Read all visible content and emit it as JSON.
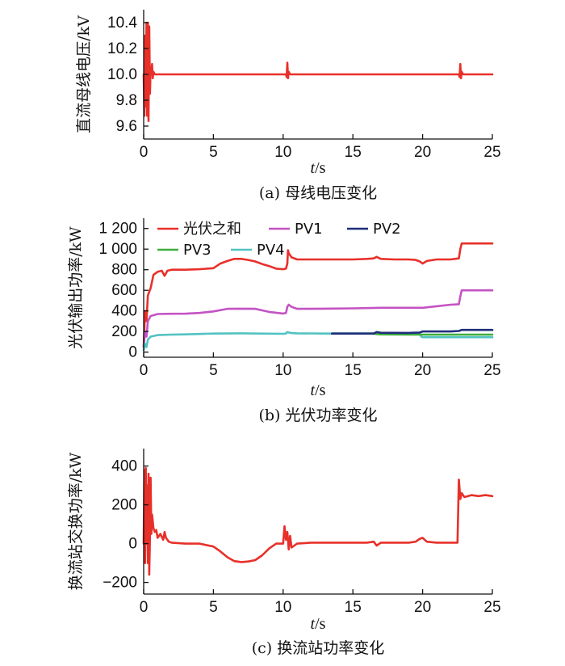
{
  "chart_data": [
    {
      "type": "line",
      "caption": "(a)  母线电压变化",
      "ylabel": "直流母线电压/kV",
      "xlabel_italic": "t",
      "xlabel_unit": "/s",
      "xlim": [
        0,
        25
      ],
      "ylim": [
        9.5,
        10.5
      ],
      "xticks": [
        "0",
        "5",
        "10",
        "15",
        "20",
        "25"
      ],
      "yticks": [
        {
          "v": 9.6,
          "label": "9.6"
        },
        {
          "v": 9.8,
          "label": "9.8"
        },
        {
          "v": 10.0,
          "label": "10.0"
        },
        {
          "v": 10.2,
          "label": "10.2"
        },
        {
          "v": 10.4,
          "label": "10.4"
        }
      ],
      "series": [
        {
          "color": "#e8302a",
          "x": [
            0,
            0.05,
            0.1,
            0.15,
            0.2,
            0.25,
            0.3,
            0.35,
            0.4,
            0.45,
            0.5,
            0.55,
            0.6,
            0.65,
            0.7,
            0.8,
            1.0,
            1.5,
            3,
            5,
            8,
            10,
            10.2,
            10.25,
            10.3,
            10.35,
            10.4,
            10.5,
            10.7,
            12,
            15,
            18,
            20,
            22,
            22.6,
            22.65,
            22.7,
            22.75,
            22.8,
            22.9,
            23.2,
            25
          ],
          "y": [
            10.0,
            9.68,
            10.3,
            9.75,
            10.4,
            9.68,
            10.4,
            9.64,
            10.37,
            9.85,
            10.06,
            10.0,
            10.08,
            9.97,
            10.02,
            10.0,
            10.0,
            10.0,
            10.0,
            10.0,
            10.0,
            10.0,
            10.0,
            9.98,
            10.09,
            9.97,
            10.02,
            10.0,
            10.0,
            10.0,
            10.0,
            10.0,
            10.0,
            10.0,
            10.0,
            9.98,
            10.08,
            9.97,
            10.02,
            10.0,
            10.0,
            10.0
          ]
        }
      ]
    },
    {
      "type": "line",
      "caption": "(b)  光伏功率变化",
      "ylabel": "光伏输出功率/kW",
      "xlabel_italic": "t",
      "xlabel_unit": "/s",
      "xlim": [
        0,
        25
      ],
      "ylim": [
        -50,
        1300
      ],
      "xticks": [
        "0",
        "5",
        "10",
        "15",
        "20",
        "25"
      ],
      "yticks": [
        {
          "v": 0,
          "label": "0"
        },
        {
          "v": 200,
          "label": "200"
        },
        {
          "v": 400,
          "label": "400"
        },
        {
          "v": 600,
          "label": "600"
        },
        {
          "v": 800,
          "label": "800"
        },
        {
          "v": 1000,
          "label": "1 000"
        },
        {
          "v": 1200,
          "label": "1 200"
        }
      ],
      "legend": [
        "光伏之和",
        "PV1",
        "PV2",
        "PV3",
        "PV4"
      ],
      "series": [
        {
          "name": "光伏之和",
          "color": "#e8302a",
          "x": [
            0,
            0.1,
            0.2,
            0.3,
            0.5,
            0.7,
            1.0,
            1.3,
            1.5,
            1.7,
            2.0,
            3,
            4,
            5,
            5.5,
            6,
            6.5,
            7,
            7.5,
            8,
            8.5,
            9,
            9.5,
            10,
            10.2,
            10.3,
            10.35,
            10.4,
            10.6,
            11,
            12,
            13,
            14,
            15,
            16,
            16.5,
            16.7,
            17,
            18,
            19,
            19.5,
            19.8,
            20,
            20.3,
            21,
            22,
            22.6,
            22.7,
            22.8,
            23,
            24,
            25
          ],
          "y": [
            50,
            400,
            300,
            550,
            620,
            750,
            780,
            790,
            740,
            790,
            800,
            800,
            805,
            815,
            860,
            885,
            905,
            905,
            895,
            880,
            855,
            835,
            810,
            805,
            810,
            860,
            990,
            960,
            920,
            900,
            900,
            900,
            900,
            900,
            905,
            910,
            925,
            905,
            900,
            900,
            895,
            880,
            860,
            885,
            900,
            900,
            910,
            1000,
            1055,
            1055,
            1055,
            1055
          ]
        },
        {
          "name": "PV1",
          "color": "#c453c3",
          "x": [
            0,
            0.1,
            0.2,
            0.3,
            0.5,
            1,
            2,
            3,
            4,
            5,
            6,
            7,
            8,
            9,
            10,
            10.2,
            10.3,
            10.4,
            10.6,
            11,
            13,
            15,
            17,
            19,
            20,
            21,
            22,
            22.6,
            22.7,
            22.8,
            25
          ],
          "y": [
            50,
            200,
            150,
            300,
            350,
            370,
            372,
            373,
            380,
            395,
            420,
            422,
            420,
            390,
            375,
            380,
            440,
            460,
            440,
            420,
            422,
            425,
            430,
            430,
            430,
            445,
            460,
            465,
            540,
            600,
            600
          ]
        },
        {
          "name": "PV4",
          "color": "#52c2c2",
          "x": [
            0,
            0.1,
            0.2,
            0.3,
            0.5,
            1,
            2,
            3,
            5,
            7,
            10,
            10.2,
            10.3,
            10.4,
            10.6,
            11,
            13,
            15,
            17,
            19,
            19.8,
            19.9,
            20,
            22,
            25
          ],
          "y": [
            20,
            80,
            50,
            120,
            150,
            165,
            170,
            172,
            180,
            182,
            178,
            180,
            195,
            190,
            185,
            182,
            180,
            180,
            180,
            178,
            178,
            150,
            145,
            145,
            145
          ]
        },
        {
          "name": "PV3",
          "color": "#3fae3c",
          "x": [
            13.5,
            15,
            16.5,
            16.7,
            17,
            19,
            20,
            22,
            25
          ],
          "y": [
            180,
            180,
            180,
            175,
            172,
            170,
            170,
            170,
            170
          ]
        },
        {
          "name": "PV2",
          "color": "#1f2e7a",
          "x": [
            13.5,
            15,
            16.5,
            16.7,
            17,
            19,
            19.8,
            20,
            22,
            22.6,
            22.8,
            25
          ],
          "y": [
            180,
            180,
            180,
            195,
            188,
            186,
            190,
            200,
            200,
            205,
            215,
            215
          ]
        }
      ]
    },
    {
      "type": "line",
      "caption": "(c)  换流站功率变化",
      "ylabel": "换流站交换功率/kW",
      "xlabel_italic": "t",
      "xlabel_unit": "/s",
      "xlim": [
        0,
        25
      ],
      "ylim": [
        -260,
        490
      ],
      "xticks": [
        "0",
        "5",
        "10",
        "15",
        "20",
        "25"
      ],
      "yticks": [
        {
          "v": -200,
          "label": "−200"
        },
        {
          "v": 0,
          "label": "0"
        },
        {
          "v": 200,
          "label": "200"
        },
        {
          "v": 400,
          "label": "400"
        }
      ],
      "series": [
        {
          "color": "#e8302a",
          "x": [
            0,
            0.05,
            0.1,
            0.15,
            0.2,
            0.25,
            0.3,
            0.35,
            0.4,
            0.45,
            0.5,
            0.55,
            0.6,
            0.7,
            0.8,
            0.9,
            1.0,
            1.2,
            1.4,
            1.5,
            1.6,
            1.8,
            2,
            3,
            4,
            5,
            5.5,
            6,
            6.5,
            7,
            7.5,
            8,
            8.5,
            9,
            9.5,
            10,
            10.1,
            10.2,
            10.3,
            10.4,
            10.5,
            10.6,
            10.8,
            11,
            12,
            13,
            14,
            15,
            16,
            16.5,
            16.7,
            17,
            18,
            19,
            19.5,
            19.8,
            20,
            20.3,
            21,
            22,
            22.4,
            22.5,
            22.6,
            22.7,
            22.8,
            22.9,
            23,
            23.5,
            24,
            24.5,
            25
          ],
          "y": [
            0,
            380,
            -100,
            390,
            0,
            300,
            -100,
            360,
            -160,
            40,
            340,
            50,
            150,
            80,
            60,
            70,
            30,
            50,
            20,
            60,
            30,
            10,
            5,
            0,
            0,
            -15,
            -40,
            -70,
            -90,
            -95,
            -92,
            -85,
            -60,
            -25,
            0,
            0,
            90,
            20,
            60,
            -30,
            40,
            -20,
            -10,
            0,
            5,
            5,
            5,
            5,
            5,
            10,
            -10,
            5,
            5,
            5,
            10,
            25,
            30,
            10,
            5,
            5,
            5,
            5,
            330,
            230,
            260,
            250,
            240,
            250,
            245,
            250,
            245
          ]
        }
      ]
    }
  ]
}
